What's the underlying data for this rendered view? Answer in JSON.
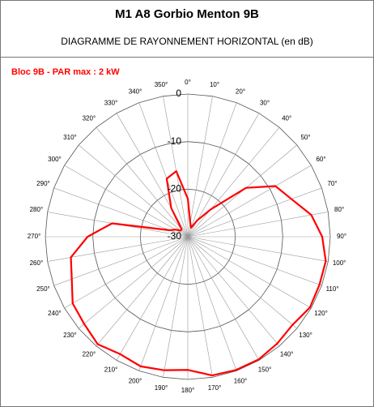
{
  "chart_data": {
    "type": "polar",
    "title": "M1 A8 Gorbio Menton 9B",
    "subtitle": "DIAGRAMME DE RAYONNEMENT HORIZONTAL  (en dB)",
    "x": [
      0,
      10,
      20,
      30,
      40,
      50,
      60,
      70,
      80,
      90,
      100,
      110,
      120,
      130,
      140,
      150,
      160,
      170,
      180,
      190,
      200,
      210,
      220,
      230,
      240,
      250,
      260,
      270,
      280,
      290,
      300,
      310,
      320,
      330,
      340,
      350
    ],
    "series": [
      {
        "name": "Bloc 9B - PAR max : 2 kW",
        "color": "#ff0000",
        "values": [
          -22,
          -27,
          -28,
          -26,
          -22.5,
          -14,
          -8.7,
          -6.8,
          -3.6,
          -1.7,
          -0.5,
          -0.5,
          -0.3,
          -1.2,
          -0.7,
          -0.2,
          -0.2,
          -0.4,
          -2,
          -1.5,
          -1,
          -1.5,
          -0.5,
          -1.5,
          -2,
          -4,
          -5,
          -8.9,
          -13.8,
          -26,
          -27,
          -28,
          -28,
          -23,
          -17,
          -16
        ]
      }
    ],
    "rlim": [
      -30,
      0
    ],
    "rticks": [
      -30,
      -20,
      -10,
      0
    ],
    "thetaticks": [
      {
        "value": 0,
        "label": "0°"
      },
      {
        "value": 10,
        "label": "10°"
      },
      {
        "value": 20,
        "label": "20°"
      },
      {
        "value": 30,
        "label": "30°"
      },
      {
        "value": 40,
        "label": "40°"
      },
      {
        "value": 50,
        "label": "50°"
      },
      {
        "value": 60,
        "label": "60°"
      },
      {
        "value": 70,
        "label": "70°"
      },
      {
        "value": 80,
        "label": "80°"
      },
      {
        "value": 90,
        "label": "90°"
      },
      {
        "value": 100,
        "label": "100°"
      },
      {
        "value": 110,
        "label": "110°"
      },
      {
        "value": 120,
        "label": "120°"
      },
      {
        "value": 130,
        "label": "130°"
      },
      {
        "value": 140,
        "label": "140°"
      },
      {
        "value": 150,
        "label": "150°"
      },
      {
        "value": 160,
        "label": "160°"
      },
      {
        "value": 170,
        "label": "170°"
      },
      {
        "value": 180,
        "label": "180°"
      },
      {
        "value": 190,
        "label": "190°"
      },
      {
        "value": 200,
        "label": "200°"
      },
      {
        "value": 210,
        "label": "210°"
      },
      {
        "value": 220,
        "label": "220°"
      },
      {
        "value": 230,
        "label": "230°"
      },
      {
        "value": 240,
        "label": "240°"
      },
      {
        "value": 250,
        "label": "250°"
      },
      {
        "value": 260,
        "label": "260°"
      },
      {
        "value": 270,
        "label": "270°"
      },
      {
        "value": 280,
        "label": "280°"
      },
      {
        "value": 290,
        "label": "290°"
      },
      {
        "value": 300,
        "label": "300°"
      },
      {
        "value": 310,
        "label": "310°"
      },
      {
        "value": 320,
        "label": "320°"
      },
      {
        "value": 330,
        "label": "330°"
      },
      {
        "value": 340,
        "label": "340°"
      },
      {
        "value": 350,
        "label": "350°"
      }
    ],
    "grid": true
  }
}
